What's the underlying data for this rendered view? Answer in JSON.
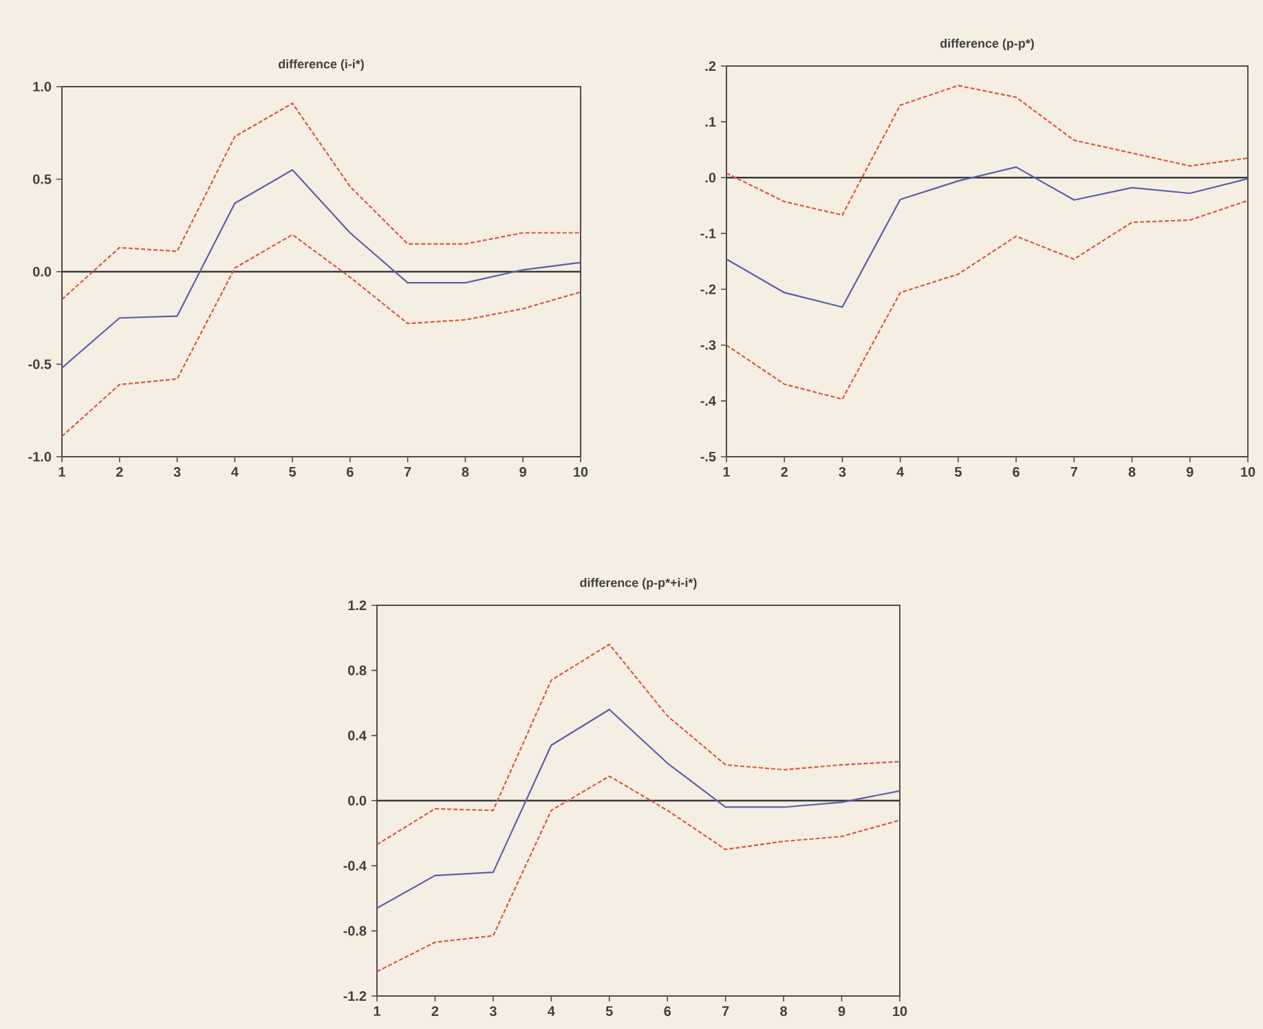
{
  "chart_data": [
    {
      "type": "line",
      "title": "difference (i-i*)",
      "x": [
        1,
        2,
        3,
        4,
        5,
        6,
        7,
        8,
        9,
        10
      ],
      "xlim": [
        1,
        10
      ],
      "xticks": [
        1,
        2,
        3,
        4,
        5,
        6,
        7,
        8,
        9,
        10
      ],
      "ylim": [
        -1,
        1
      ],
      "yticks": [
        {
          "value": -1,
          "label": "-1.0"
        },
        {
          "value": -0.5,
          "label": "-0.5"
        },
        {
          "value": 0,
          "label": "0.0"
        },
        {
          "value": 0.5,
          "label": "0.5"
        },
        {
          "value": 1,
          "label": "1.0"
        }
      ],
      "grid": false,
      "ref_lines": [
        {
          "axis": "y",
          "value": 0,
          "color": "#3a3a3a"
        }
      ],
      "series": [
        {
          "color": "#5a5ea8",
          "line_style": "solid",
          "values": [
            -0.52,
            -0.25,
            -0.24,
            0.37,
            0.55,
            0.21,
            -0.06,
            -0.06,
            0.01,
            0.05
          ]
        },
        {
          "color": "#d9583c",
          "line_style": "dashed",
          "values": [
            -0.15,
            0.13,
            0.11,
            0.73,
            0.91,
            0.46,
            0.15,
            0.15,
            0.21,
            0.21
          ]
        },
        {
          "color": "#d9583c",
          "line_style": "dashed",
          "values": [
            -0.89,
            -0.61,
            -0.58,
            0.02,
            0.2,
            -0.03,
            -0.28,
            -0.26,
            -0.2,
            -0.11
          ]
        }
      ]
    },
    {
      "type": "line",
      "title": "difference (p-p*)",
      "x": [
        1,
        2,
        3,
        4,
        5,
        6,
        7,
        8,
        9,
        10
      ],
      "xlim": [
        1,
        10
      ],
      "xticks": [
        1,
        2,
        3,
        4,
        5,
        6,
        7,
        8,
        9,
        10
      ],
      "ylim": [
        -0.5,
        0.2
      ],
      "yticks": [
        {
          "value": -0.5,
          "label": "-.5"
        },
        {
          "value": -0.4,
          "label": "-.4"
        },
        {
          "value": -0.3,
          "label": "-.3"
        },
        {
          "value": -0.2,
          "label": "-.2"
        },
        {
          "value": -0.1,
          "label": "-.1"
        },
        {
          "value": 0,
          "label": ".0"
        },
        {
          "value": 0.1,
          "label": ".1"
        },
        {
          "value": 0.2,
          "label": ".2"
        }
      ],
      "grid": false,
      "ref_lines": [
        {
          "axis": "y",
          "value": 0,
          "color": "#3a3a3a"
        }
      ],
      "series": [
        {
          "color": "#5a5ea8",
          "line_style": "solid",
          "values": [
            -0.146,
            -0.206,
            -0.232,
            -0.039,
            -0.006,
            0.019,
            -0.04,
            -0.018,
            -0.028,
            -0.002
          ]
        },
        {
          "color": "#d9583c",
          "line_style": "dashed",
          "values": [
            0.008,
            -0.043,
            -0.067,
            0.13,
            0.165,
            0.144,
            0.067,
            0.044,
            0.021,
            0.035
          ]
        },
        {
          "color": "#d9583c",
          "line_style": "dashed",
          "values": [
            -0.3,
            -0.37,
            -0.397,
            -0.206,
            -0.173,
            -0.105,
            -0.146,
            -0.08,
            -0.076,
            -0.041
          ]
        }
      ]
    },
    {
      "type": "line",
      "title": "difference (p-p*+i-i*)",
      "x": [
        1,
        2,
        3,
        4,
        5,
        6,
        7,
        8,
        9,
        10
      ],
      "xlim": [
        1,
        10
      ],
      "xticks": [
        1,
        2,
        3,
        4,
        5,
        6,
        7,
        8,
        9,
        10
      ],
      "ylim": [
        -1.2,
        1.2
      ],
      "yticks": [
        {
          "value": -1.2,
          "label": "-1.2"
        },
        {
          "value": -0.8,
          "label": "-0.8"
        },
        {
          "value": -0.4,
          "label": "-0.4"
        },
        {
          "value": 0,
          "label": "0.0"
        },
        {
          "value": 0.4,
          "label": "0.4"
        },
        {
          "value": 0.8,
          "label": "0.8"
        },
        {
          "value": 1.2,
          "label": "1.2"
        }
      ],
      "grid": false,
      "ref_lines": [
        {
          "axis": "y",
          "value": 0,
          "color": "#3a3a3a"
        }
      ],
      "series": [
        {
          "color": "#5a5ea8",
          "line_style": "solid",
          "values": [
            -0.66,
            -0.46,
            -0.44,
            0.34,
            0.56,
            0.23,
            -0.04,
            -0.04,
            -0.01,
            0.06
          ]
        },
        {
          "color": "#d9583c",
          "line_style": "dashed",
          "values": [
            -0.27,
            -0.05,
            -0.06,
            0.74,
            0.96,
            0.52,
            0.22,
            0.19,
            0.22,
            0.24
          ]
        },
        {
          "color": "#d9583c",
          "line_style": "dashed",
          "values": [
            -1.05,
            -0.87,
            -0.83,
            -0.06,
            0.15,
            -0.06,
            -0.3,
            -0.25,
            -0.22,
            -0.12
          ]
        }
      ]
    }
  ]
}
